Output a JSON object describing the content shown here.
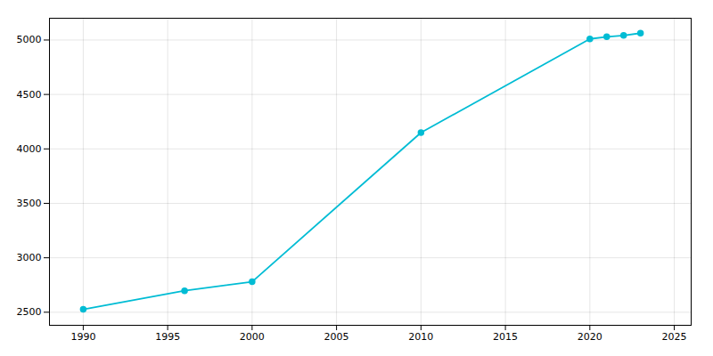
{
  "chart_data": {
    "type": "line",
    "x": [
      1990,
      1996,
      2000,
      2010,
      2020,
      2021,
      2022,
      2023
    ],
    "values": [
      2527,
      2697,
      2780,
      4150,
      5010,
      5030,
      5042,
      5063
    ],
    "color": "#00bcd4",
    "marker": "circle",
    "xlim": [
      1988,
      2026
    ],
    "ylim": [
      2380,
      5200
    ],
    "xticks": [
      1990,
      1995,
      2000,
      2005,
      2010,
      2015,
      2020,
      2025
    ],
    "yticks": [
      2500,
      3000,
      3500,
      4000,
      4500,
      5000
    ],
    "grid": true
  }
}
